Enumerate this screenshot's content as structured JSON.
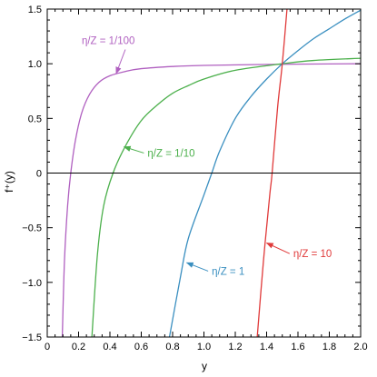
{
  "chart_data": {
    "type": "line",
    "title": "",
    "xlabel": "y",
    "ylabel": "f⁺(y)",
    "xlim": [
      0,
      2.0
    ],
    "ylim": [
      -1.5,
      1.5
    ],
    "x_ticks": [
      0,
      0.2,
      0.4,
      0.6,
      0.8,
      1.0,
      1.2,
      1.4,
      1.6,
      1.8,
      2.0
    ],
    "x_tick_labels": [
      "0",
      "0.2",
      "0.4",
      "0.6",
      "0.8",
      "1.0",
      "1.2",
      "1.4",
      "1.6",
      "1.8",
      "2.0"
    ],
    "y_ticks": [
      -1.5,
      -1.0,
      -0.5,
      0,
      0.5,
      1.0,
      1.5
    ],
    "y_tick_labels": [
      "−1.5",
      "−1.0",
      "−0.5",
      "0",
      "0.5",
      "1.0",
      "1.5"
    ],
    "grid": false,
    "zero_line": true,
    "series": [
      {
        "name": "η/Z = 1/100",
        "color": "#b060c0",
        "points": [
          [
            0.096,
            -1.5
          ],
          [
            0.11,
            -0.8
          ],
          [
            0.13,
            -0.3
          ],
          [
            0.15,
            0.0
          ],
          [
            0.18,
            0.3
          ],
          [
            0.22,
            0.55
          ],
          [
            0.27,
            0.72
          ],
          [
            0.33,
            0.83
          ],
          [
            0.4,
            0.89
          ],
          [
            0.5,
            0.93
          ],
          [
            0.6,
            0.955
          ],
          [
            0.8,
            0.975
          ],
          [
            1.0,
            0.985
          ],
          [
            1.5,
            0.995
          ],
          [
            2.0,
            1.0
          ]
        ]
      },
      {
        "name": "η/Z = 1/10",
        "color": "#4cb04c",
        "points": [
          [
            0.285,
            -1.5
          ],
          [
            0.32,
            -0.75
          ],
          [
            0.36,
            -0.3
          ],
          [
            0.42,
            0.0
          ],
          [
            0.5,
            0.25
          ],
          [
            0.6,
            0.48
          ],
          [
            0.7,
            0.62
          ],
          [
            0.8,
            0.73
          ],
          [
            0.9,
            0.8
          ],
          [
            1.0,
            0.86
          ],
          [
            1.2,
            0.94
          ],
          [
            1.5,
            1.0
          ],
          [
            1.7,
            1.03
          ],
          [
            2.0,
            1.05
          ]
        ]
      },
      {
        "name": "η/Z = 1",
        "color": "#3a8fc0",
        "points": [
          [
            0.78,
            -1.5
          ],
          [
            0.85,
            -0.95
          ],
          [
            0.9,
            -0.6
          ],
          [
            1.0,
            -0.2
          ],
          [
            1.05,
            0.0
          ],
          [
            1.1,
            0.2
          ],
          [
            1.2,
            0.5
          ],
          [
            1.3,
            0.7
          ],
          [
            1.4,
            0.86
          ],
          [
            1.5,
            1.0
          ],
          [
            1.6,
            1.12
          ],
          [
            1.7,
            1.23
          ],
          [
            1.8,
            1.32
          ],
          [
            1.9,
            1.41
          ],
          [
            2.0,
            1.49
          ]
        ]
      },
      {
        "name": "η/Z = 10",
        "color": "#e03a3a",
        "points": [
          [
            1.34,
            -1.5
          ],
          [
            1.38,
            -0.8
          ],
          [
            1.42,
            -0.2
          ],
          [
            1.435,
            0.0
          ],
          [
            1.47,
            0.6
          ],
          [
            1.5,
            1.0
          ],
          [
            1.53,
            1.5
          ]
        ]
      }
    ],
    "annotations": [
      {
        "text": "η/Z = 1/100",
        "color": "#b060c0",
        "label_xy": [
          0.22,
          1.18
        ],
        "arrow_to": [
          0.44,
          0.91
        ]
      },
      {
        "text": "η/Z = 1/10",
        "color": "#4cb04c",
        "label_xy": [
          0.64,
          0.15
        ],
        "arrow_to": [
          0.49,
          0.24
        ]
      },
      {
        "text": "η/Z = 1",
        "color": "#3a8fc0",
        "label_xy": [
          1.05,
          -0.93
        ],
        "arrow_to": [
          0.89,
          -0.82
        ]
      },
      {
        "text": "η/Z = 10",
        "color": "#e03a3a",
        "label_xy": [
          1.57,
          -0.77
        ],
        "arrow_to": [
          1.4,
          -0.64
        ]
      }
    ]
  }
}
